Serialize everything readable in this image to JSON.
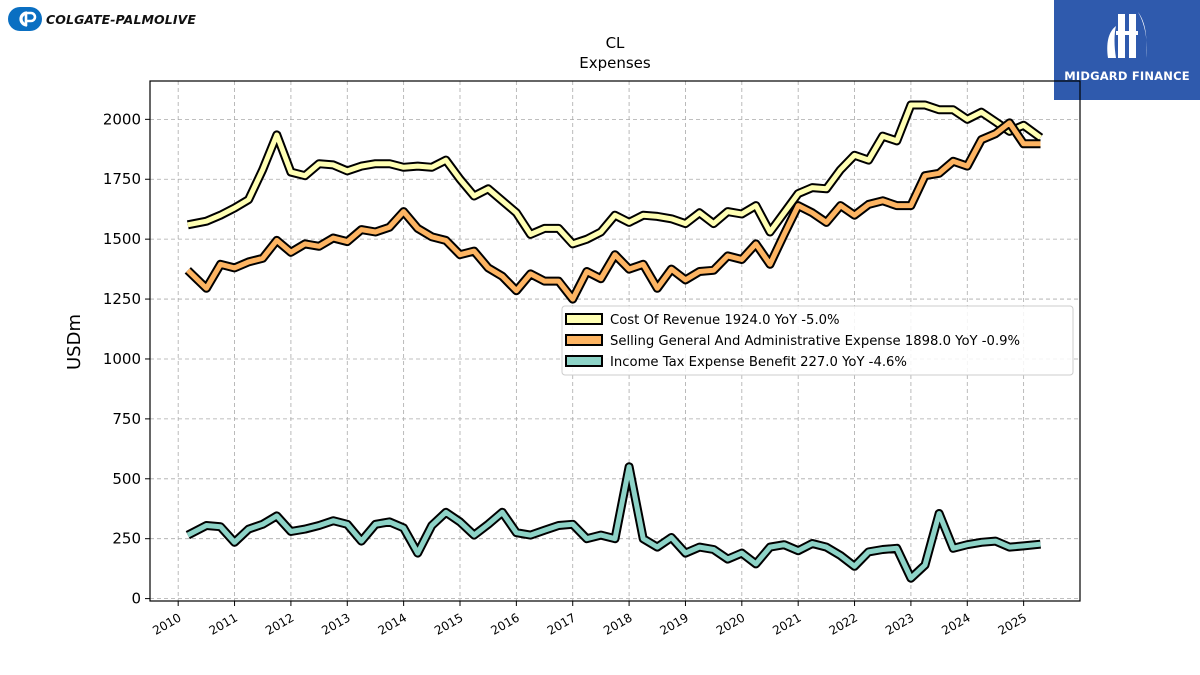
{
  "brand": {
    "company_logo_text": "COLGATE-PALMOLIVE",
    "company_color": "#0a6fc2",
    "partner_logo_text": "MIDGARD FINANCE",
    "partner_color": "#2f5aad"
  },
  "chart_data": {
    "type": "line",
    "title": "CL",
    "subtitle": "Expenses",
    "ylabel": "USDm",
    "xlabel": "",
    "ylim": [
      -10,
      2160
    ],
    "xlim": [
      2009.5,
      2026.0
    ],
    "yticks": [
      0,
      250,
      500,
      750,
      1000,
      1250,
      1500,
      1750,
      2000
    ],
    "xticks": [
      "2010",
      "2011",
      "2012",
      "2013",
      "2014",
      "2015",
      "2016",
      "2017",
      "2018",
      "2019",
      "2020",
      "2021",
      "2022",
      "2023",
      "2024",
      "2025"
    ],
    "grid": true,
    "legend_position": "center-right",
    "series": [
      {
        "name": "Cost Of Revenue",
        "legend_label": "Cost Of Revenue  1924.0 YoY -5.0%",
        "color": "#ffffb3",
        "x": [
          2010.17,
          2010.5,
          2010.75,
          2011.0,
          2011.25,
          2011.5,
          2011.75,
          2012.0,
          2012.25,
          2012.5,
          2012.75,
          2013.0,
          2013.25,
          2013.5,
          2013.75,
          2014.0,
          2014.25,
          2014.5,
          2014.75,
          2015.0,
          2015.25,
          2015.5,
          2015.75,
          2016.0,
          2016.25,
          2016.5,
          2016.75,
          2017.0,
          2017.25,
          2017.5,
          2017.75,
          2018.0,
          2018.25,
          2018.5,
          2018.75,
          2019.0,
          2019.25,
          2019.5,
          2019.75,
          2020.0,
          2020.25,
          2020.5,
          2020.75,
          2021.0,
          2021.25,
          2021.5,
          2021.75,
          2022.0,
          2022.25,
          2022.5,
          2022.75,
          2023.0,
          2023.25,
          2023.5,
          2023.75,
          2024.0,
          2024.25,
          2024.5,
          2024.75,
          2025.0,
          2025.3
        ],
        "values": [
          1560,
          1575,
          1600,
          1630,
          1665,
          1790,
          1935,
          1780,
          1765,
          1815,
          1810,
          1785,
          1805,
          1815,
          1815,
          1800,
          1805,
          1800,
          1830,
          1750,
          1680,
          1710,
          1660,
          1610,
          1520,
          1545,
          1545,
          1480,
          1500,
          1530,
          1600,
          1570,
          1600,
          1595,
          1585,
          1565,
          1610,
          1565,
          1615,
          1605,
          1640,
          1530,
          1610,
          1690,
          1715,
          1710,
          1790,
          1850,
          1830,
          1930,
          1910,
          2060,
          2060,
          2040,
          2040,
          2000,
          2030,
          1990,
          1950,
          1975,
          1924
        ]
      },
      {
        "name": "Selling General And Administrative Expense",
        "legend_label": "Selling General And Administrative Expense  1898.0 YoY -0.9%",
        "color": "#fdb462",
        "x": [
          2010.17,
          2010.5,
          2010.75,
          2011.0,
          2011.25,
          2011.5,
          2011.75,
          2012.0,
          2012.25,
          2012.5,
          2012.75,
          2013.0,
          2013.25,
          2013.5,
          2013.75,
          2014.0,
          2014.25,
          2014.5,
          2014.75,
          2015.0,
          2015.25,
          2015.5,
          2015.75,
          2016.0,
          2016.25,
          2016.5,
          2016.75,
          2017.0,
          2017.25,
          2017.5,
          2017.75,
          2018.0,
          2018.25,
          2018.5,
          2018.75,
          2019.0,
          2019.25,
          2019.5,
          2019.75,
          2020.0,
          2020.25,
          2020.5,
          2020.75,
          2021.0,
          2021.25,
          2021.5,
          2021.75,
          2022.0,
          2022.25,
          2022.5,
          2022.75,
          2023.0,
          2023.25,
          2023.5,
          2023.75,
          2024.0,
          2024.25,
          2024.5,
          2024.75,
          2025.0,
          2025.3
        ],
        "values": [
          1370,
          1295,
          1395,
          1380,
          1405,
          1420,
          1495,
          1445,
          1480,
          1470,
          1505,
          1490,
          1540,
          1530,
          1550,
          1615,
          1545,
          1510,
          1495,
          1435,
          1450,
          1380,
          1345,
          1285,
          1355,
          1325,
          1325,
          1250,
          1365,
          1335,
          1435,
          1375,
          1395,
          1295,
          1375,
          1330,
          1365,
          1370,
          1430,
          1415,
          1480,
          1395,
          1520,
          1640,
          1610,
          1570,
          1640,
          1600,
          1645,
          1660,
          1640,
          1640,
          1765,
          1775,
          1825,
          1805,
          1915,
          1940,
          1985,
          1898,
          1898
        ]
      },
      {
        "name": "Income Tax Expense Benefit",
        "legend_label": "Income Tax Expense Benefit  227.0 YoY -4.6%",
        "color": "#8dd3c7",
        "x": [
          2010.17,
          2010.5,
          2010.75,
          2011.0,
          2011.25,
          2011.5,
          2011.75,
          2012.0,
          2012.25,
          2012.5,
          2012.75,
          2013.0,
          2013.25,
          2013.5,
          2013.75,
          2014.0,
          2014.25,
          2014.5,
          2014.75,
          2015.0,
          2015.25,
          2015.5,
          2015.75,
          2016.0,
          2016.25,
          2016.5,
          2016.75,
          2017.0,
          2017.25,
          2017.5,
          2017.75,
          2018.0,
          2018.25,
          2018.5,
          2018.75,
          2019.0,
          2019.25,
          2019.5,
          2019.75,
          2020.0,
          2020.25,
          2020.5,
          2020.75,
          2021.0,
          2021.25,
          2021.5,
          2021.75,
          2022.0,
          2022.25,
          2022.5,
          2022.75,
          2023.0,
          2023.25,
          2023.5,
          2023.75,
          2024.0,
          2024.25,
          2024.5,
          2024.75,
          2025.0,
          2025.3
        ],
        "values": [
          265,
          305,
          300,
          235,
          290,
          310,
          345,
          280,
          290,
          305,
          325,
          310,
          240,
          310,
          320,
          295,
          190,
          305,
          360,
          320,
          265,
          310,
          360,
          275,
          265,
          285,
          305,
          310,
          250,
          265,
          250,
          550,
          250,
          215,
          255,
          190,
          215,
          205,
          165,
          190,
          145,
          215,
          225,
          200,
          230,
          215,
          180,
          135,
          195,
          205,
          210,
          85,
          140,
          355,
          210,
          225,
          235,
          240,
          215,
          220,
          227
        ]
      }
    ]
  }
}
